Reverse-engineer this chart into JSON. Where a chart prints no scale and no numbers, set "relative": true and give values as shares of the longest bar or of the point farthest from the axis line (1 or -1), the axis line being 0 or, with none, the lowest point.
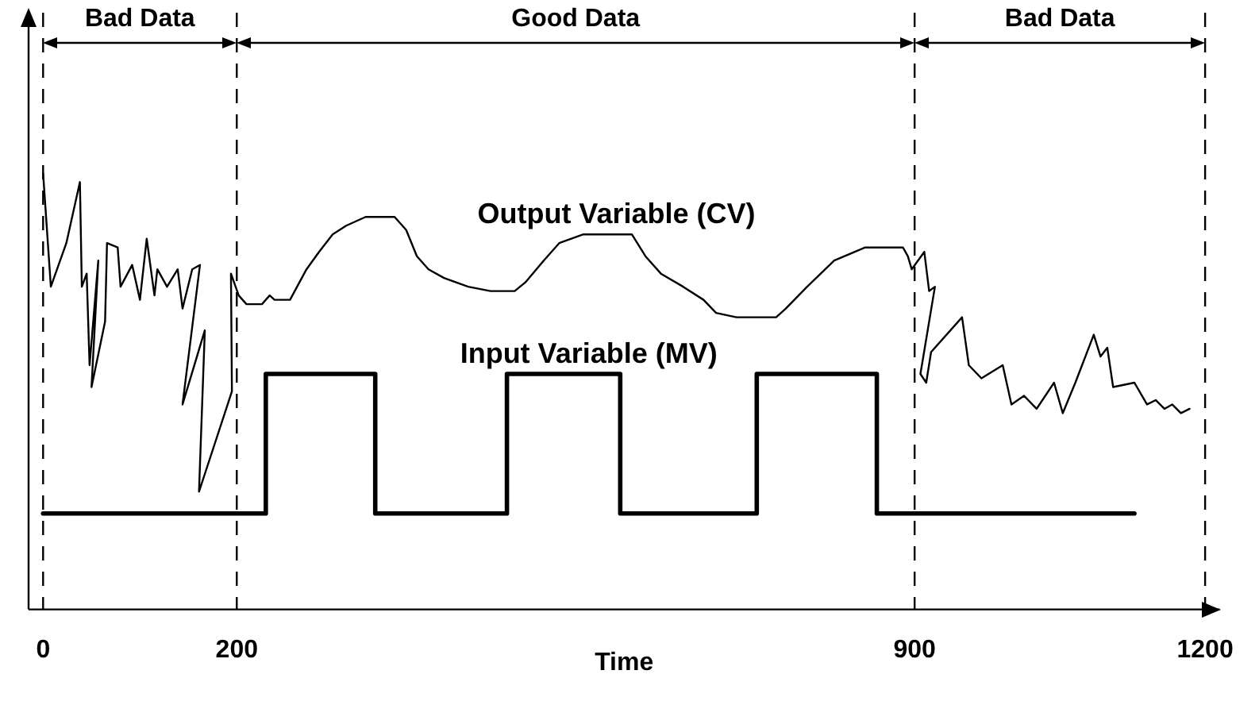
{
  "chart_data": {
    "type": "line",
    "xlabel": "Time",
    "relative": true,
    "xlim": [
      -15,
      1215
    ],
    "xticks": [
      0,
      200,
      900,
      1200
    ],
    "tick_labels": "x",
    "ref_lines": [
      {
        "axis": "x",
        "value": 0,
        "line_style": "dashed"
      },
      {
        "axis": "x",
        "value": 200,
        "line_style": "dashed"
      },
      {
        "axis": "x",
        "value": 900,
        "line_style": "dashed"
      },
      {
        "axis": "x",
        "value": 1200,
        "line_style": "dashed"
      }
    ],
    "annotations": [
      "Bad Data",
      "Good Data",
      "Bad Data"
    ],
    "series": [
      {
        "name": "Output Variable (CV)",
        "color": "#000000",
        "x": [
          0,
          8,
          24,
          38,
          40,
          45,
          48,
          57,
          50,
          64,
          66,
          77,
          80,
          92,
          100,
          107,
          115,
          118,
          128,
          139,
          144,
          154,
          162,
          144,
          167,
          161,
          195,
          194,
          202,
          210,
          226,
          234,
          239,
          255,
          272,
          285,
          299,
          313,
          333,
          363,
          375,
          386,
          398,
          414,
          439,
          462,
          487,
          498,
          517,
          533,
          558,
          608,
          622,
          638,
          661,
          682,
          695,
          716,
          757,
          767,
          789,
          817,
          849,
          888,
          893,
          897,
          910,
          915,
          921,
          906,
          912,
          917,
          949,
          956,
          969,
          991,
          1000,
          1013,
          1026,
          1044,
          1053,
          1066,
          1085,
          1092,
          1099,
          1105,
          1127,
          1140,
          1149,
          1158,
          1166,
          1175,
          1184
        ],
        "values": [
          1,
          0.74,
          0.84,
          0.98,
          0.74,
          0.77,
          0.56,
          0.8,
          0.51,
          0.66,
          0.84,
          0.83,
          0.74,
          0.79,
          0.71,
          0.85,
          0.72,
          0.78,
          0.74,
          0.78,
          0.69,
          0.78,
          0.79,
          0.47,
          0.64,
          0.27,
          0.5,
          0.77,
          0.72,
          0.7,
          0.7,
          0.72,
          0.71,
          0.71,
          0.78,
          0.82,
          0.86,
          0.88,
          0.9,
          0.9,
          0.87,
          0.81,
          0.78,
          0.76,
          0.74,
          0.73,
          0.73,
          0.75,
          0.8,
          0.84,
          0.86,
          0.86,
          0.81,
          0.77,
          0.74,
          0.71,
          0.68,
          0.67,
          0.67,
          0.69,
          0.74,
          0.8,
          0.83,
          0.83,
          0.81,
          0.78,
          0.82,
          0.73,
          0.74,
          0.54,
          0.52,
          0.59,
          0.67,
          0.56,
          0.53,
          0.56,
          0.47,
          0.49,
          0.46,
          0.52,
          0.45,
          0.52,
          0.63,
          0.58,
          0.6,
          0.51,
          0.52,
          0.47,
          0.48,
          0.46,
          0.47,
          0.45,
          0.46
        ]
      },
      {
        "name": "Input Variable (MV)",
        "type": "step",
        "color": "#000000",
        "x": [
          0,
          230,
          343,
          479,
          596,
          737,
          861,
          1127
        ],
        "values": [
          0.22,
          0.54,
          0.22,
          0.54,
          0.22,
          0.54,
          0.22,
          0.22
        ]
      }
    ]
  }
}
